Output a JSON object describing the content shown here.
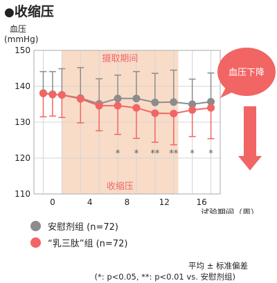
{
  "title": "收缩压",
  "title_marker": "●",
  "chart_data": {
    "type": "line",
    "title": "收缩压",
    "ylabel": "血压\n(mmHg)",
    "xlabel": "试验期间（周）",
    "ylim": [
      110,
      150
    ],
    "yticks": [
      110,
      120,
      130,
      140,
      150
    ],
    "xlim": [
      -2,
      18
    ],
    "xticks": [
      0,
      4,
      8,
      12,
      16
    ],
    "grid": true,
    "intake_period_label": "摄取期间",
    "intake_period_range": [
      1,
      13.5
    ],
    "intake_period_color": "#f8dcc8",
    "region_label": "收缩压",
    "series": [
      {
        "name": "安慰剂组 (n=72)",
        "color": "#8c8c8c",
        "x": [
          -1,
          0,
          1,
          3,
          5,
          7,
          9,
          11,
          13,
          15,
          17
        ],
        "y": [
          138.1,
          137.8,
          137.6,
          136.7,
          135.1,
          136.6,
          136.6,
          135.5,
          135.6,
          135.0,
          135.7
        ],
        "error": [
          6.0,
          6.3,
          7.3,
          8.5,
          7.0,
          6.5,
          7.5,
          8.1,
          8.9,
          7.0,
          8.0
        ]
      },
      {
        "name": "“乳三肽”组 (n=72)",
        "color": "#f26565",
        "x": [
          -1,
          0,
          1,
          3,
          5,
          7,
          9,
          11,
          13,
          15,
          17
        ],
        "y": [
          138.0,
          137.7,
          137.6,
          136.5,
          134.6,
          134.6,
          134.0,
          132.5,
          132.4,
          133.4,
          134.0
        ],
        "error": [
          6.5,
          6.0,
          6.3,
          6.7,
          7.0,
          8.0,
          8.5,
          8.1,
          8.7,
          7.4,
          8.6
        ]
      }
    ],
    "significance": [
      {
        "x": 7,
        "label": "*"
      },
      {
        "x": 9,
        "label": "*"
      },
      {
        "x": 11,
        "label": "**"
      },
      {
        "x": 13,
        "label": "**"
      },
      {
        "x": 15,
        "label": "*"
      },
      {
        "x": 17,
        "label": "*"
      }
    ],
    "callout": "血压下降",
    "callout_color": "#f26565"
  },
  "legend": {
    "placebo_label": "安慰剂组 (n=72)",
    "placebo_color": "#8c8c8c",
    "tripeptide_label": "“乳三肽”组 (n=72)",
    "tripeptide_color": "#f26565"
  },
  "notes": {
    "line1": "平均 ± 标准偏差",
    "line2": "(*: p<0.05, **: p<0.01 vs. 安慰剂组)"
  }
}
